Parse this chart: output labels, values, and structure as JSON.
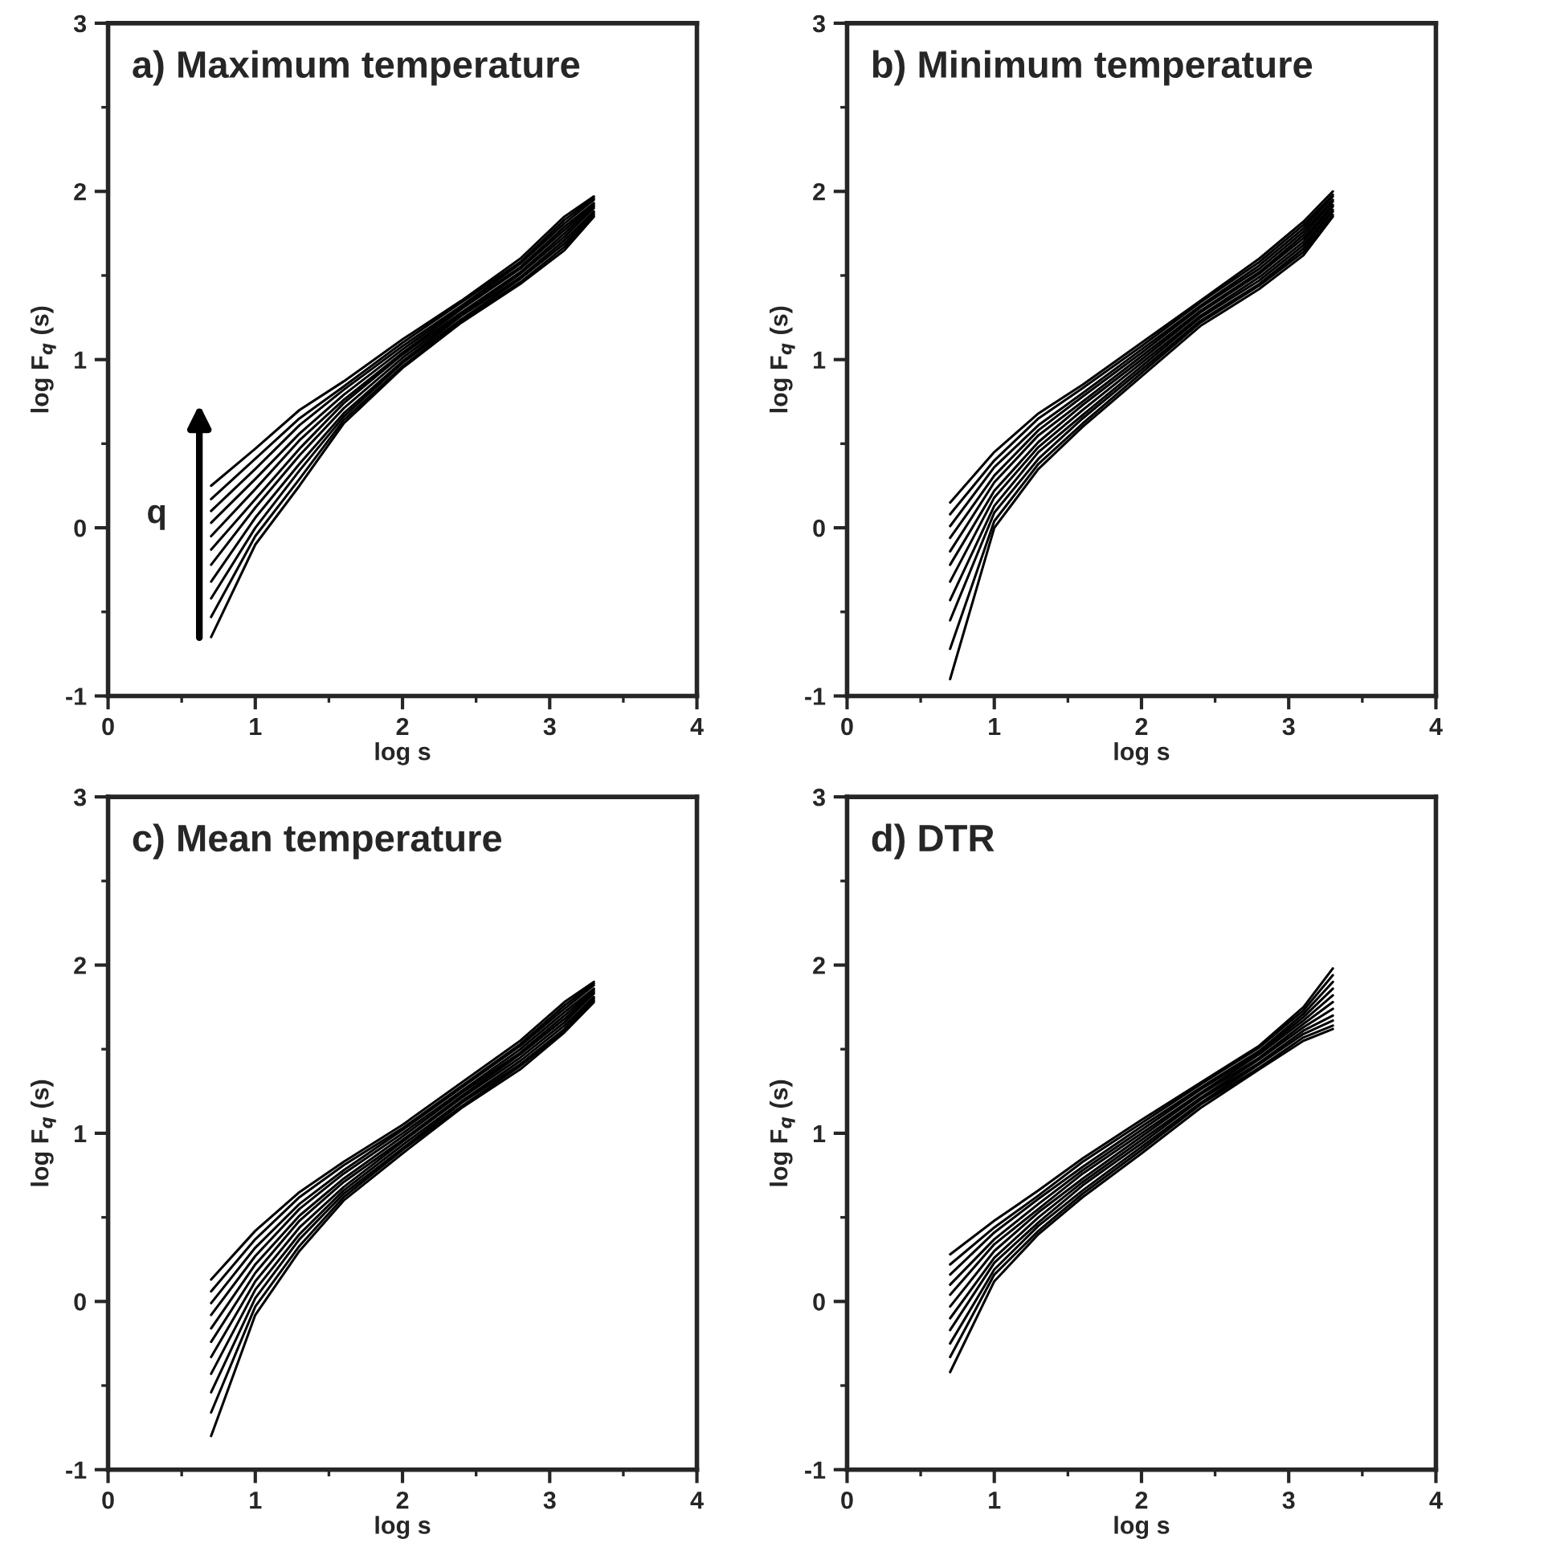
{
  "chart_data": [
    {
      "type": "line",
      "title": "a) Maximum temperature",
      "xlabel": "log s",
      "ylabel": "log F$_{q}$ (s)",
      "annotations": [
        "q"
      ],
      "x": [
        0.7,
        1.0,
        1.3,
        1.6,
        2.0,
        2.4,
        2.8,
        3.1,
        3.3
      ],
      "xlim": [
        0,
        4
      ],
      "ylim": [
        -1,
        3
      ],
      "xticks": [
        0,
        {
          "value": 0.5,
          "label": null
        },
        1,
        {
          "value": 1.5,
          "label": null
        },
        2,
        {
          "value": 2.5,
          "label": null
        },
        3,
        {
          "value": 3.5,
          "label": null
        },
        4
      ],
      "yticks": [
        -1,
        {
          "value": -0.5,
          "label": null
        },
        0,
        {
          "value": 0.5,
          "label": null
        },
        1,
        {
          "value": 1.5,
          "label": null
        },
        2,
        {
          "value": 2.5,
          "label": null
        },
        3
      ],
      "grid": false,
      "legend": false,
      "marker": "none",
      "line_style": "solid",
      "series": [
        {
          "color": "#000000",
          "values": [
            0.25,
            0.47,
            0.7,
            0.87,
            1.12,
            1.35,
            1.6,
            1.85,
            1.97
          ]
        },
        {
          "color": "#000000",
          "values": [
            0.17,
            0.41,
            0.65,
            0.84,
            1.1,
            1.34,
            1.58,
            1.83,
            1.96
          ]
        },
        {
          "color": "#000000",
          "values": [
            0.1,
            0.35,
            0.61,
            0.82,
            1.08,
            1.32,
            1.57,
            1.81,
            1.95
          ]
        },
        {
          "color": "#000000",
          "values": [
            0.03,
            0.29,
            0.56,
            0.79,
            1.06,
            1.31,
            1.55,
            1.79,
            1.93
          ]
        },
        {
          "color": "#000000",
          "values": [
            -0.05,
            0.23,
            0.52,
            0.76,
            1.04,
            1.3,
            1.54,
            1.77,
            1.92
          ]
        },
        {
          "color": "#000000",
          "values": [
            -0.13,
            0.17,
            0.47,
            0.74,
            1.03,
            1.28,
            1.52,
            1.75,
            1.91
          ]
        },
        {
          "color": "#000000",
          "values": [
            -0.22,
            0.12,
            0.43,
            0.71,
            1.01,
            1.27,
            1.51,
            1.73,
            1.9
          ]
        },
        {
          "color": "#000000",
          "values": [
            -0.32,
            0.06,
            0.38,
            0.68,
            0.99,
            1.26,
            1.49,
            1.71,
            1.88
          ]
        },
        {
          "color": "#000000",
          "values": [
            -0.42,
            0.0,
            0.34,
            0.66,
            0.98,
            1.24,
            1.48,
            1.69,
            1.87
          ]
        },
        {
          "color": "#000000",
          "values": [
            -0.53,
            -0.05,
            0.29,
            0.64,
            0.96,
            1.23,
            1.46,
            1.67,
            1.86
          ]
        },
        {
          "color": "#000000",
          "values": [
            -0.65,
            -0.1,
            0.25,
            0.62,
            0.95,
            1.22,
            1.45,
            1.65,
            1.85
          ]
        }
      ]
    },
    {
      "type": "line",
      "title": "b) Minimum temperature",
      "xlabel": "log s",
      "ylabel": "log F$_{q}$ (s)",
      "x": [
        0.7,
        1.0,
        1.3,
        1.6,
        2.0,
        2.4,
        2.8,
        3.1,
        3.3
      ],
      "xlim": [
        0,
        4
      ],
      "ylim": [
        -1,
        3
      ],
      "xticks": [
        0,
        {
          "value": 0.5,
          "label": null
        },
        1,
        {
          "value": 1.5,
          "label": null
        },
        2,
        {
          "value": 2.5,
          "label": null
        },
        3,
        {
          "value": 3.5,
          "label": null
        },
        4
      ],
      "yticks": [
        -1,
        {
          "value": -0.5,
          "label": null
        },
        0,
        {
          "value": 0.5,
          "label": null
        },
        1,
        {
          "value": 1.5,
          "label": null
        },
        2,
        {
          "value": 2.5,
          "label": null
        },
        3
      ],
      "grid": false,
      "legend": false,
      "marker": "none",
      "line_style": "solid",
      "series": [
        {
          "color": "#000000",
          "values": [
            0.15,
            0.45,
            0.68,
            0.85,
            1.1,
            1.35,
            1.6,
            1.82,
            2.0
          ]
        },
        {
          "color": "#000000",
          "values": [
            0.08,
            0.4,
            0.65,
            0.83,
            1.08,
            1.34,
            1.58,
            1.8,
            1.98
          ]
        },
        {
          "color": "#000000",
          "values": [
            0.01,
            0.36,
            0.61,
            0.8,
            1.06,
            1.32,
            1.56,
            1.78,
            1.97
          ]
        },
        {
          "color": "#000000",
          "values": [
            -0.06,
            0.31,
            0.58,
            0.78,
            1.04,
            1.31,
            1.54,
            1.76,
            1.95
          ]
        },
        {
          "color": "#000000",
          "values": [
            -0.14,
            0.27,
            0.55,
            0.75,
            1.02,
            1.29,
            1.52,
            1.74,
            1.94
          ]
        },
        {
          "color": "#000000",
          "values": [
            -0.22,
            0.22,
            0.51,
            0.73,
            1.0,
            1.28,
            1.51,
            1.72,
            1.92
          ]
        },
        {
          "color": "#000000",
          "values": [
            -0.32,
            0.18,
            0.48,
            0.7,
            0.98,
            1.26,
            1.49,
            1.7,
            1.91
          ]
        },
        {
          "color": "#000000",
          "values": [
            -0.43,
            0.13,
            0.45,
            0.67,
            0.96,
            1.25,
            1.47,
            1.68,
            1.89
          ]
        },
        {
          "color": "#000000",
          "values": [
            -0.55,
            0.09,
            0.41,
            0.65,
            0.94,
            1.23,
            1.45,
            1.66,
            1.88
          ]
        },
        {
          "color": "#000000",
          "values": [
            -0.72,
            0.04,
            0.38,
            0.62,
            0.92,
            1.22,
            1.44,
            1.64,
            1.86
          ]
        },
        {
          "color": "#000000",
          "values": [
            -0.9,
            0.0,
            0.35,
            0.6,
            0.9,
            1.2,
            1.42,
            1.62,
            1.85
          ]
        }
      ]
    },
    {
      "type": "line",
      "title": "c) Mean temperature",
      "xlabel": "log s",
      "ylabel": "log F$_{q}$ (s)",
      "x": [
        0.7,
        1.0,
        1.3,
        1.6,
        2.0,
        2.4,
        2.8,
        3.1,
        3.3
      ],
      "xlim": [
        0,
        4
      ],
      "ylim": [
        -1,
        3
      ],
      "xticks": [
        0,
        {
          "value": 0.5,
          "label": null
        },
        1,
        {
          "value": 1.5,
          "label": null
        },
        2,
        {
          "value": 2.5,
          "label": null
        },
        3,
        {
          "value": 3.5,
          "label": null
        },
        4
      ],
      "yticks": [
        -1,
        {
          "value": -0.5,
          "label": null
        },
        0,
        {
          "value": 0.5,
          "label": null
        },
        1,
        {
          "value": 1.5,
          "label": null
        },
        2,
        {
          "value": 2.5,
          "label": null
        },
        3
      ],
      "grid": false,
      "legend": false,
      "marker": "none",
      "line_style": "solid",
      "series": [
        {
          "color": "#000000",
          "values": [
            0.13,
            0.42,
            0.65,
            0.83,
            1.05,
            1.3,
            1.55,
            1.78,
            1.9
          ]
        },
        {
          "color": "#000000",
          "values": [
            0.06,
            0.37,
            0.62,
            0.81,
            1.03,
            1.28,
            1.53,
            1.76,
            1.89
          ]
        },
        {
          "color": "#000000",
          "values": [
            -0.01,
            0.32,
            0.58,
            0.78,
            1.02,
            1.27,
            1.52,
            1.74,
            1.88
          ]
        },
        {
          "color": "#000000",
          "values": [
            -0.08,
            0.27,
            0.55,
            0.76,
            1.0,
            1.25,
            1.5,
            1.72,
            1.86
          ]
        },
        {
          "color": "#000000",
          "values": [
            -0.16,
            0.22,
            0.51,
            0.73,
            0.98,
            1.24,
            1.48,
            1.7,
            1.85
          ]
        },
        {
          "color": "#000000",
          "values": [
            -0.24,
            0.17,
            0.48,
            0.71,
            0.96,
            1.22,
            1.47,
            1.68,
            1.84
          ]
        },
        {
          "color": "#000000",
          "values": [
            -0.33,
            0.12,
            0.44,
            0.68,
            0.95,
            1.21,
            1.45,
            1.66,
            1.83
          ]
        },
        {
          "color": "#000000",
          "values": [
            -0.43,
            0.07,
            0.4,
            0.66,
            0.93,
            1.19,
            1.43,
            1.64,
            1.81
          ]
        },
        {
          "color": "#000000",
          "values": [
            -0.54,
            0.02,
            0.37,
            0.64,
            0.91,
            1.18,
            1.41,
            1.62,
            1.8
          ]
        },
        {
          "color": "#000000",
          "values": [
            -0.66,
            -0.03,
            0.33,
            0.62,
            0.9,
            1.16,
            1.4,
            1.61,
            1.79
          ]
        },
        {
          "color": "#000000",
          "values": [
            -0.8,
            -0.08,
            0.3,
            0.6,
            0.88,
            1.15,
            1.38,
            1.6,
            1.78
          ]
        }
      ]
    },
    {
      "type": "line",
      "title": "d) DTR",
      "xlabel": "log s",
      "ylabel": "log F$_{q}$ (s)",
      "x": [
        0.7,
        1.0,
        1.3,
        1.6,
        2.0,
        2.4,
        2.8,
        3.1,
        3.3
      ],
      "xlim": [
        0,
        4
      ],
      "ylim": [
        -1,
        3
      ],
      "xticks": [
        0,
        {
          "value": 0.5,
          "label": null
        },
        1,
        {
          "value": 1.5,
          "label": null
        },
        2,
        {
          "value": 2.5,
          "label": null
        },
        3,
        {
          "value": 3.5,
          "label": null
        },
        4
      ],
      "yticks": [
        -1,
        {
          "value": -0.5,
          "label": null
        },
        0,
        {
          "value": 0.5,
          "label": null
        },
        1,
        {
          "value": 1.5,
          "label": null
        },
        2,
        {
          "value": 2.5,
          "label": null
        },
        3
      ],
      "grid": false,
      "legend": false,
      "marker": "none",
      "line_style": "solid",
      "series": [
        {
          "color": "#000000",
          "values": [
            0.28,
            0.48,
            0.66,
            0.85,
            1.08,
            1.3,
            1.52,
            1.75,
            1.98
          ]
        },
        {
          "color": "#000000",
          "values": [
            0.22,
            0.44,
            0.63,
            0.83,
            1.06,
            1.29,
            1.51,
            1.73,
            1.94
          ]
        },
        {
          "color": "#000000",
          "values": [
            0.16,
            0.41,
            0.61,
            0.8,
            1.04,
            1.27,
            1.49,
            1.71,
            1.9
          ]
        },
        {
          "color": "#000000",
          "values": [
            0.1,
            0.37,
            0.58,
            0.78,
            1.02,
            1.26,
            1.48,
            1.69,
            1.86
          ]
        },
        {
          "color": "#000000",
          "values": [
            0.04,
            0.34,
            0.55,
            0.76,
            1.0,
            1.24,
            1.47,
            1.67,
            1.82
          ]
        },
        {
          "color": "#000000",
          "values": [
            -0.03,
            0.3,
            0.53,
            0.73,
            0.98,
            1.23,
            1.45,
            1.65,
            1.78
          ]
        },
        {
          "color": "#000000",
          "values": [
            -0.1,
            0.26,
            0.5,
            0.71,
            0.96,
            1.21,
            1.44,
            1.63,
            1.74
          ]
        },
        {
          "color": "#000000",
          "values": [
            -0.17,
            0.23,
            0.47,
            0.69,
            0.94,
            1.2,
            1.42,
            1.61,
            1.7
          ]
        },
        {
          "color": "#000000",
          "values": [
            -0.25,
            0.19,
            0.45,
            0.66,
            0.92,
            1.18,
            1.41,
            1.59,
            1.67
          ]
        },
        {
          "color": "#000000",
          "values": [
            -0.33,
            0.16,
            0.42,
            0.64,
            0.9,
            1.17,
            1.39,
            1.57,
            1.64
          ]
        },
        {
          "color": "#000000",
          "values": [
            -0.42,
            0.12,
            0.4,
            0.62,
            0.88,
            1.15,
            1.38,
            1.55,
            1.62
          ]
        }
      ]
    }
  ]
}
